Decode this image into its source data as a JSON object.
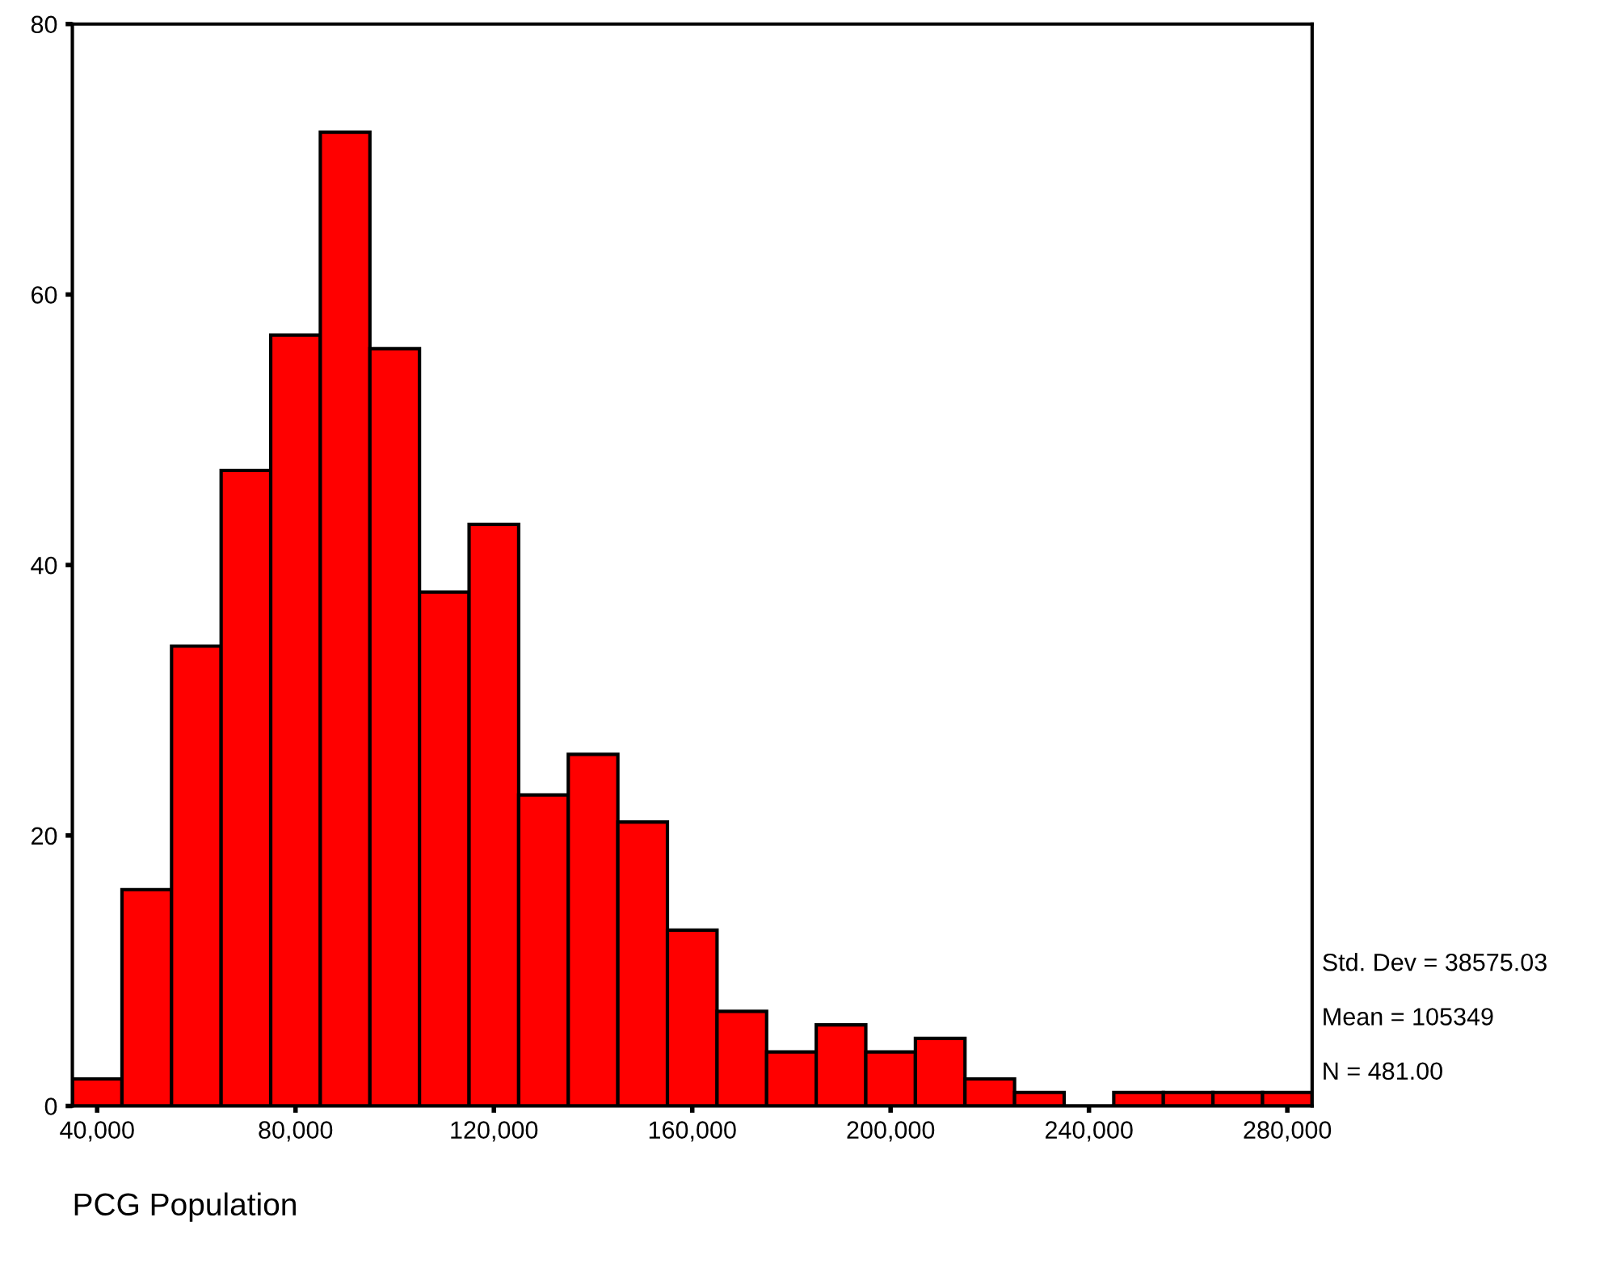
{
  "chart_data": {
    "type": "histogram",
    "xlabel": "PCG Population",
    "bins": [
      35000,
      45000,
      55000,
      65000,
      75000,
      85000,
      95000,
      105000,
      115000,
      125000,
      135000,
      145000,
      155000,
      165000,
      175000,
      185000,
      195000,
      205000,
      215000,
      225000,
      235000,
      245000,
      255000,
      265000,
      275000,
      285000
    ],
    "values": [
      2,
      16,
      34,
      47,
      57,
      72,
      56,
      38,
      43,
      23,
      26,
      21,
      13,
      7,
      4,
      6,
      4,
      5,
      2,
      1,
      0,
      1,
      1,
      1,
      1
    ],
    "color": "#ff0000",
    "xlim": [
      35000,
      285000
    ],
    "xticks": [
      {
        "value": 40000,
        "label": "40,000"
      },
      {
        "value": 80000,
        "label": "80,000"
      },
      {
        "value": 120000,
        "label": "120,000"
      },
      {
        "value": 160000,
        "label": "160,000"
      },
      {
        "value": 200000,
        "label": "200,000"
      },
      {
        "value": 240000,
        "label": "240,000"
      },
      {
        "value": 280000,
        "label": "280,000"
      }
    ],
    "ylim": [
      0,
      80
    ],
    "yticks": [
      0,
      20,
      40,
      60,
      80
    ],
    "annotations": [
      "Std. Dev = 38575.03",
      "Mean = 105349",
      "N = 481.00"
    ],
    "grid": false
  }
}
